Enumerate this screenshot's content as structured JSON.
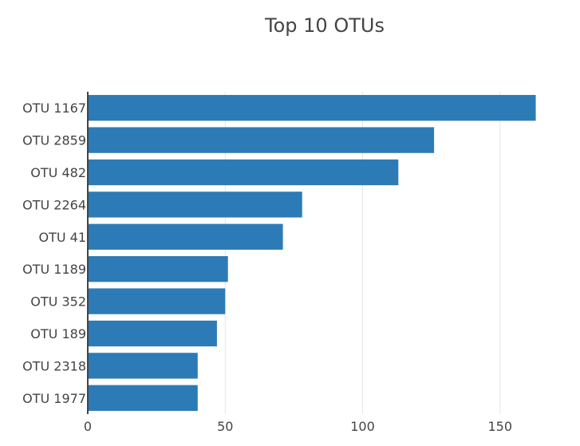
{
  "chart_data": {
    "type": "bar",
    "orientation": "horizontal",
    "title": "Top 10 OTUs",
    "xlabel": "",
    "ylabel": "",
    "xlim": [
      0,
      164
    ],
    "x_ticks": [
      0,
      50,
      100,
      150
    ],
    "grid": "vertical",
    "legend": "none",
    "bar_color": "#2c7bb6",
    "categories": [
      "OTU 1167",
      "OTU 2859",
      "OTU 482",
      "OTU 2264",
      "OTU 41",
      "OTU 1189",
      "OTU 352",
      "OTU 189",
      "OTU 2318",
      "OTU 1977"
    ],
    "values": [
      163,
      126,
      113,
      78,
      71,
      51,
      50,
      47,
      40,
      40
    ]
  }
}
